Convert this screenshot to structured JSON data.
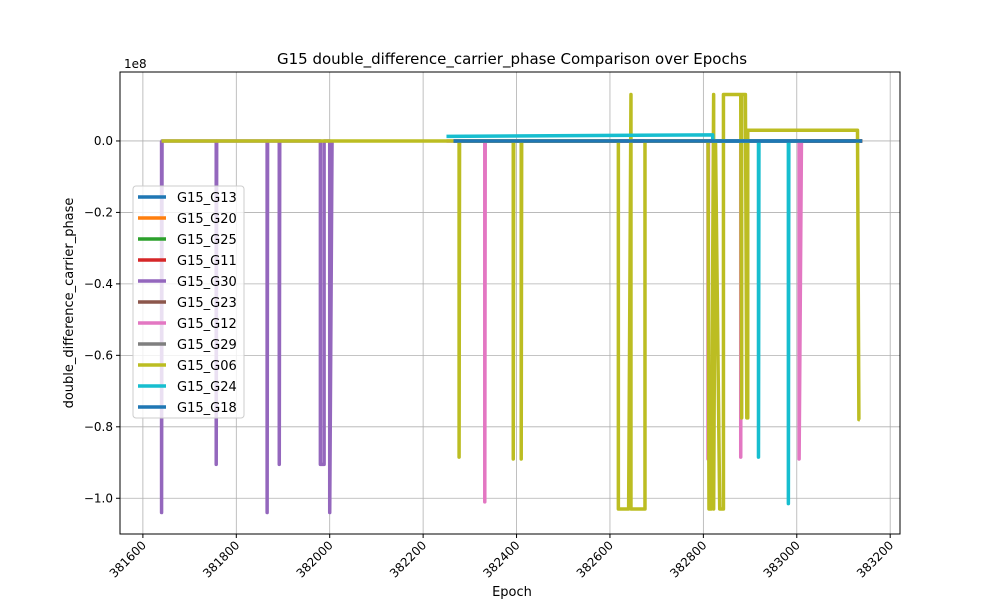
{
  "chart_data": {
    "type": "line",
    "title": "G15 double_difference_carrier_phase Comparison over Epochs",
    "x_label": "Epoch",
    "y_label": "double_difference_carrier_phase",
    "y_offset_label": "1e8",
    "xlim": [
      381551,
      383221
    ],
    "ylim": [
      -1.1,
      0.193
    ],
    "xticks": [
      381600,
      381800,
      382000,
      382200,
      382400,
      382600,
      382800,
      383000,
      383200
    ],
    "yticks": [
      {
        "value": 0,
        "label": "0.0"
      },
      {
        "value": -0.2,
        "label": "−0.2"
      },
      {
        "value": -0.4,
        "label": "−0.4"
      },
      {
        "value": -0.6,
        "label": "−0.6"
      },
      {
        "value": -0.8,
        "label": "−0.8"
      },
      {
        "value": -1.0,
        "label": "−1.0"
      }
    ],
    "grid": true,
    "legend": "center left",
    "series": [
      {
        "name": "G15_G13",
        "color": "#1f77b4",
        "x": [
          382265,
          383140
        ],
        "values": [
          0,
          0
        ]
      },
      {
        "name": "G15_G20",
        "color": "#ff7f0e",
        "x": [
          382265,
          383140
        ],
        "values": [
          0,
          0
        ]
      },
      {
        "name": "G15_G25",
        "color": "#2ca02c",
        "x": [
          382265,
          383140
        ],
        "values": [
          0,
          0
        ]
      },
      {
        "name": "G15_G11",
        "color": "#d62728",
        "x": [
          382265,
          383140
        ],
        "values": [
          0,
          0
        ]
      },
      {
        "name": "G15_G30",
        "color": "#9467bd",
        "x": [
          381640,
          381640,
          381641,
          381757,
          381757,
          381758,
          381866,
          381866,
          381867,
          381892,
          381892,
          381893,
          381980,
          381980,
          381988,
          381988,
          382000,
          382000,
          382005
        ],
        "values": [
          0,
          -1.04,
          0,
          0,
          -0.905,
          0,
          0,
          -1.04,
          0,
          0,
          -0.905,
          0,
          0,
          -0.905,
          -0.905,
          0,
          0,
          -1.04,
          0
        ]
      },
      {
        "name": "G15_G23",
        "color": "#8c564b",
        "x": [
          382265,
          383140
        ],
        "values": [
          0,
          0
        ]
      },
      {
        "name": "G15_G12",
        "color": "#e377c2",
        "x": [
          382250,
          382332,
          382332,
          382333,
          382810,
          382810,
          382811,
          382880,
          382880,
          382881,
          383005,
          383005,
          383010
        ],
        "values": [
          0,
          0,
          -1.01,
          0,
          0,
          -0.89,
          0,
          0,
          -0.885,
          0,
          0,
          -0.89,
          0
        ]
      },
      {
        "name": "G15_G29",
        "color": "#7f7f7f",
        "x": [
          382265,
          383140
        ],
        "values": [
          0,
          0
        ]
      },
      {
        "name": "G15_G06",
        "color": "#bcbd22",
        "x": [
          381640,
          382277,
          382277,
          382278,
          382393,
          382393,
          382394,
          382410,
          382410,
          382411,
          382618,
          382618,
          382640,
          382645,
          382645,
          382650,
          382675,
          382675,
          382810,
          382812,
          382817,
          382822,
          382822,
          382826,
          382835,
          382843,
          382843,
          382880,
          382882,
          382882,
          382886,
          382890,
          382893,
          382895,
          382895,
          383130,
          383133,
          383135
        ],
        "values": [
          0,
          0,
          -0.885,
          0,
          0,
          -0.89,
          0,
          0,
          -0.89,
          0,
          0,
          -1.03,
          -1.03,
          0.13,
          -1.03,
          -1.03,
          -1.03,
          0,
          0,
          -1.03,
          -1.03,
          0.13,
          -1.03,
          0,
          -1.03,
          -1.03,
          0.13,
          0.13,
          -0.775,
          0.13,
          0.13,
          0.13,
          -0.775,
          -0.775,
          0.03,
          0.03,
          -0.78,
          -0.78
        ]
      },
      {
        "name": "G15_G24",
        "color": "#17becf",
        "x": [
          382250,
          382820,
          382820,
          382918,
          382918,
          382919,
          382982,
          382982,
          382983,
          383000
        ],
        "values": [
          0.013,
          0.017,
          0,
          0,
          -0.885,
          0,
          0,
          -1.015,
          0,
          0
        ]
      },
      {
        "name": "G15_G18",
        "color": "#1f77b4",
        "x": [
          382265,
          383140
        ],
        "values": [
          0,
          0
        ]
      }
    ]
  }
}
